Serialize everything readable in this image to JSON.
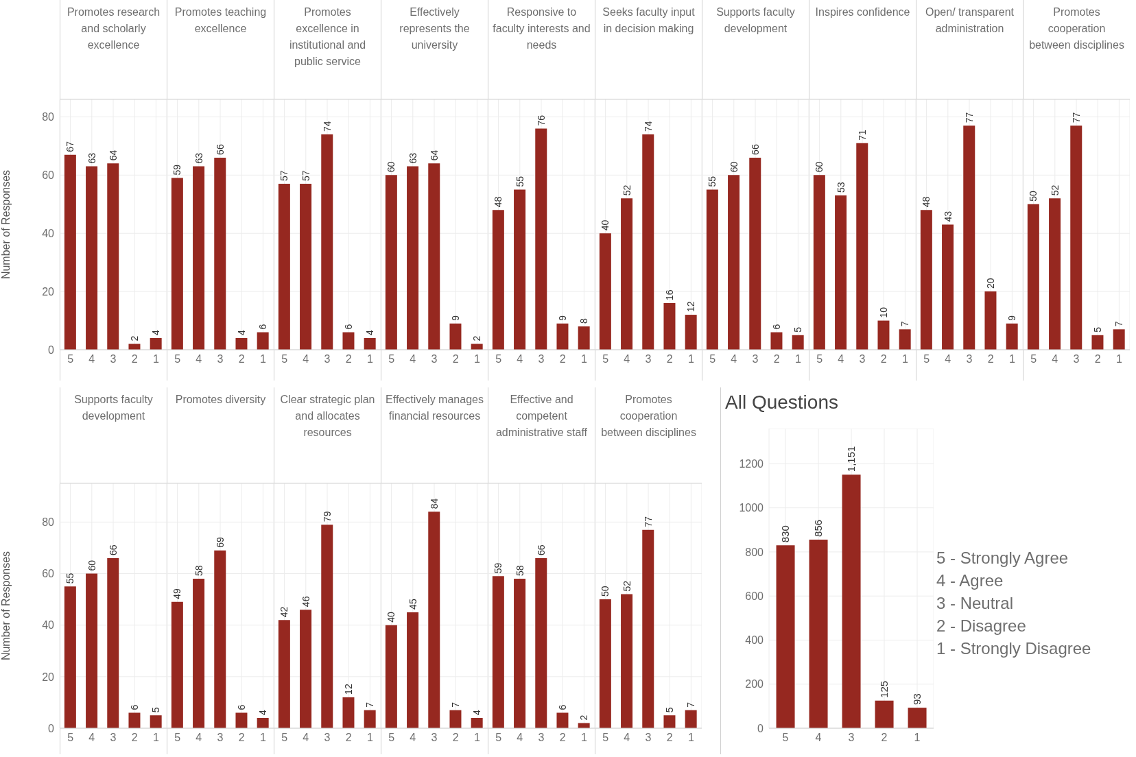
{
  "chart_data": [
    {
      "type": "bar",
      "title": "Promotes research and scholarly excellence",
      "ylabel": "Number of Responses",
      "categories": [
        "5",
        "4",
        "3",
        "2",
        "1"
      ],
      "values": [
        67,
        63,
        64,
        2,
        4
      ],
      "color": "#962820",
      "ylim": [
        0,
        86
      ],
      "yticks": [
        0,
        20,
        40,
        60,
        80
      ],
      "grid": true,
      "data_labels": true
    },
    {
      "type": "bar",
      "title": "Promotes teaching excellence",
      "categories": [
        "5",
        "4",
        "3",
        "2",
        "1"
      ],
      "values": [
        59,
        63,
        66,
        4,
        6
      ],
      "color": "#962820",
      "ylim": [
        0,
        86
      ],
      "yticks": [
        0,
        20,
        40,
        60,
        80
      ],
      "grid": true,
      "data_labels": true,
      "tick_labels": "x"
    },
    {
      "type": "bar",
      "title": "Promotes excellence in institutional and public service",
      "categories": [
        "5",
        "4",
        "3",
        "2",
        "1"
      ],
      "values": [
        57,
        57,
        74,
        6,
        4
      ],
      "color": "#962820",
      "ylim": [
        0,
        86
      ],
      "yticks": [
        0,
        20,
        40,
        60,
        80
      ],
      "grid": true,
      "data_labels": true,
      "tick_labels": "x"
    },
    {
      "type": "bar",
      "title": "Effectively represents the university",
      "categories": [
        "5",
        "4",
        "3",
        "2",
        "1"
      ],
      "values": [
        60,
        63,
        64,
        9,
        2
      ],
      "color": "#962820",
      "ylim": [
        0,
        86
      ],
      "yticks": [
        0,
        20,
        40,
        60,
        80
      ],
      "grid": true,
      "data_labels": true,
      "tick_labels": "x"
    },
    {
      "type": "bar",
      "title": "Responsive to faculty interests and needs",
      "categories": [
        "5",
        "4",
        "3",
        "2",
        "1"
      ],
      "values": [
        48,
        55,
        76,
        9,
        8
      ],
      "color": "#962820",
      "ylim": [
        0,
        86
      ],
      "yticks": [
        0,
        20,
        40,
        60,
        80
      ],
      "grid": true,
      "data_labels": true,
      "tick_labels": "x"
    },
    {
      "type": "bar",
      "title": "Seeks faculty input in decision making",
      "categories": [
        "5",
        "4",
        "3",
        "2",
        "1"
      ],
      "values": [
        40,
        52,
        74,
        16,
        12
      ],
      "color": "#962820",
      "ylim": [
        0,
        86
      ],
      "yticks": [
        0,
        20,
        40,
        60,
        80
      ],
      "grid": true,
      "data_labels": true,
      "tick_labels": "x"
    },
    {
      "type": "bar",
      "title": "Supports faculty development",
      "categories": [
        "5",
        "4",
        "3",
        "2",
        "1"
      ],
      "values": [
        55,
        60,
        66,
        6,
        5
      ],
      "color": "#962820",
      "ylim": [
        0,
        86
      ],
      "yticks": [
        0,
        20,
        40,
        60,
        80
      ],
      "grid": true,
      "data_labels": true,
      "tick_labels": "x"
    },
    {
      "type": "bar",
      "title": "Inspires confidence",
      "categories": [
        "5",
        "4",
        "3",
        "2",
        "1"
      ],
      "values": [
        60,
        53,
        71,
        10,
        7
      ],
      "color": "#962820",
      "ylim": [
        0,
        86
      ],
      "yticks": [
        0,
        20,
        40,
        60,
        80
      ],
      "grid": true,
      "data_labels": true,
      "tick_labels": "x"
    },
    {
      "type": "bar",
      "title": "Open/ transparent administration",
      "categories": [
        "5",
        "4",
        "3",
        "2",
        "1"
      ],
      "values": [
        48,
        43,
        77,
        20,
        9
      ],
      "color": "#962820",
      "ylim": [
        0,
        86
      ],
      "yticks": [
        0,
        20,
        40,
        60,
        80
      ],
      "grid": true,
      "data_labels": true,
      "tick_labels": "x"
    },
    {
      "type": "bar",
      "title": "Promotes cooperation between disciplines",
      "categories": [
        "5",
        "4",
        "3",
        "2",
        "1"
      ],
      "values": [
        50,
        52,
        77,
        5,
        7
      ],
      "color": "#962820",
      "ylim": [
        0,
        86
      ],
      "yticks": [
        0,
        20,
        40,
        60,
        80
      ],
      "grid": true,
      "data_labels": true,
      "tick_labels": "x"
    },
    {
      "type": "bar",
      "title": "Supports faculty development",
      "ylabel": "Number of Responses",
      "categories": [
        "5",
        "4",
        "3",
        "2",
        "1"
      ],
      "values": [
        55,
        60,
        66,
        6,
        5
      ],
      "color": "#962820",
      "ylim": [
        0,
        95
      ],
      "yticks": [
        0,
        20,
        40,
        60,
        80
      ],
      "grid": true,
      "data_labels": true
    },
    {
      "type": "bar",
      "title": "Promotes diversity",
      "categories": [
        "5",
        "4",
        "3",
        "2",
        "1"
      ],
      "values": [
        49,
        58,
        69,
        6,
        4
      ],
      "color": "#962820",
      "ylim": [
        0,
        95
      ],
      "yticks": [
        0,
        20,
        40,
        60,
        80
      ],
      "grid": true,
      "data_labels": true,
      "tick_labels": "x"
    },
    {
      "type": "bar",
      "title": "Clear strategic plan and allocates resources",
      "categories": [
        "5",
        "4",
        "3",
        "2",
        "1"
      ],
      "values": [
        42,
        46,
        79,
        12,
        7
      ],
      "color": "#962820",
      "ylim": [
        0,
        95
      ],
      "yticks": [
        0,
        20,
        40,
        60,
        80
      ],
      "grid": true,
      "data_labels": true,
      "tick_labels": "x"
    },
    {
      "type": "bar",
      "title": "Effectively manages financial resources",
      "categories": [
        "5",
        "4",
        "3",
        "2",
        "1"
      ],
      "values": [
        40,
        45,
        84,
        7,
        4
      ],
      "color": "#962820",
      "ylim": [
        0,
        95
      ],
      "yticks": [
        0,
        20,
        40,
        60,
        80
      ],
      "grid": true,
      "data_labels": true,
      "tick_labels": "x"
    },
    {
      "type": "bar",
      "title": "Effective and competent administrative staff",
      "categories": [
        "5",
        "4",
        "3",
        "2",
        "1"
      ],
      "values": [
        59,
        58,
        66,
        6,
        2
      ],
      "color": "#962820",
      "ylim": [
        0,
        95
      ],
      "yticks": [
        0,
        20,
        40,
        60,
        80
      ],
      "grid": true,
      "data_labels": true,
      "tick_labels": "x"
    },
    {
      "type": "bar",
      "title": "Promotes cooperation between disciplines",
      "categories": [
        "5",
        "4",
        "3",
        "2",
        "1"
      ],
      "values": [
        50,
        52,
        77,
        5,
        7
      ],
      "color": "#962820",
      "ylim": [
        0,
        95
      ],
      "yticks": [
        0,
        20,
        40,
        60,
        80
      ],
      "grid": true,
      "data_labels": true,
      "tick_labels": "x"
    },
    {
      "type": "bar",
      "title": "All Questions",
      "categories": [
        "5",
        "4",
        "3",
        "2",
        "1"
      ],
      "values": [
        830,
        856,
        1151,
        125,
        93
      ],
      "value_labels": [
        "830",
        "856",
        "1,151",
        "125",
        "93"
      ],
      "color": "#962820",
      "ylim": [
        0,
        1360
      ],
      "yticks": [
        0,
        200,
        400,
        600,
        800,
        1000,
        1200
      ],
      "grid": true,
      "annotations": [
        "5 - Strongly Agree",
        "4 - Agree",
        "3 - Neutral",
        "2 - Disagree",
        "1 - Strongly Disagree"
      ]
    }
  ]
}
